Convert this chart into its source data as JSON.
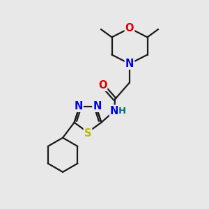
{
  "bg_color": "#e8e8e8",
  "bond_color": "#1a1a1a",
  "bond_width": 1.6,
  "atom_colors": {
    "N": "#0000ee",
    "O": "#dd0000",
    "S": "#bbbb00",
    "H": "#007070",
    "C": "#1a1a1a"
  },
  "font_size_atom": 10.5,
  "font_size_small": 8.5
}
